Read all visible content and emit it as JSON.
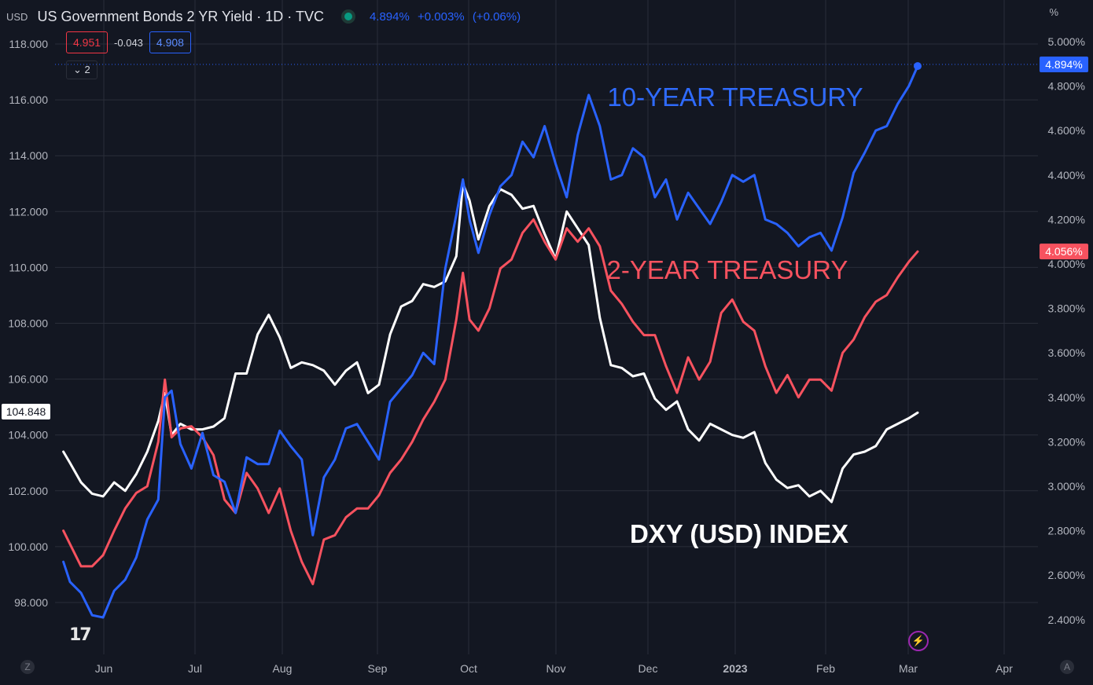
{
  "header": {
    "currency": "USD",
    "title": "US Government Bonds 2 YR Yield · 1D · TVC",
    "last": "4.894%",
    "change": "+0.003%",
    "change_pct": "(+0.06%)",
    "pct_unit": "%"
  },
  "ohlc": {
    "sell": "4.951",
    "spread": "-0.043",
    "buy": "4.908"
  },
  "collapse_label": "2",
  "logo_text": "17",
  "bolt_glyph": "⚡",
  "corner_left": "Z",
  "corner_right": "A",
  "colors": {
    "background": "#131722",
    "grid": "#2a2e39",
    "ten_year": "#2962ff",
    "two_year": "#f7525f",
    "dxy": "#ffffff"
  },
  "chart_data": {
    "type": "line",
    "x_labels": [
      "Jun",
      "Jul",
      "Aug",
      "Sep",
      "Oct",
      "Nov",
      "Dec",
      "2023",
      "Feb",
      "Mar",
      "Apr"
    ],
    "left_axis": {
      "ticks": [
        "118.000",
        "116.000",
        "114.000",
        "112.000",
        "110.000",
        "108.000",
        "106.000",
        "104.000",
        "102.000",
        "100.000",
        "98.000"
      ],
      "range": [
        95.1,
        119.6
      ],
      "badge": "104.848"
    },
    "right_axis": {
      "ticks": [
        "5.000%",
        "4.800%",
        "4.600%",
        "4.400%",
        "4.200%",
        "4.000%",
        "3.800%",
        "3.600%",
        "3.400%",
        "3.200%",
        "3.000%",
        "2.800%",
        "2.600%",
        "2.400%"
      ],
      "range": [
        2.38,
        5.12
      ],
      "badge_ten": "4.894%",
      "badge_two": "4.056%"
    },
    "annotations": {
      "ten_year": "10-YEAR TREASURY",
      "two_year": "2-YEAR TREASURY",
      "dxy": "DXY (USD) INDEX"
    },
    "series": [
      {
        "key": "ten",
        "axis": "right",
        "values": [
          [
            0.2,
            2.66
          ],
          [
            0.5,
            2.57
          ],
          [
            1.0,
            2.52
          ],
          [
            1.5,
            2.42
          ],
          [
            2.0,
            2.41
          ],
          [
            2.5,
            2.53
          ],
          [
            3.0,
            2.58
          ],
          [
            3.5,
            2.68
          ],
          [
            4.0,
            2.85
          ],
          [
            4.5,
            2.94
          ],
          [
            4.8,
            3.4
          ],
          [
            5.1,
            3.43
          ],
          [
            5.5,
            3.19
          ],
          [
            6.0,
            3.08
          ],
          [
            6.5,
            3.24
          ],
          [
            7.0,
            3.05
          ],
          [
            7.5,
            3.02
          ],
          [
            8.0,
            2.88
          ],
          [
            8.5,
            3.13
          ],
          [
            9.0,
            3.1
          ],
          [
            9.5,
            3.1
          ],
          [
            10.0,
            3.25
          ],
          [
            10.5,
            3.18
          ],
          [
            11.0,
            3.12
          ],
          [
            11.5,
            2.78
          ],
          [
            12.0,
            3.04
          ],
          [
            12.5,
            3.12
          ],
          [
            13.0,
            3.26
          ],
          [
            13.5,
            3.28
          ],
          [
            14.0,
            3.2
          ],
          [
            14.5,
            3.12
          ],
          [
            15.0,
            3.38
          ],
          [
            15.5,
            3.44
          ],
          [
            16.0,
            3.5
          ],
          [
            16.5,
            3.6
          ],
          [
            17.0,
            3.55
          ],
          [
            17.5,
            3.98
          ],
          [
            18.0,
            4.22
          ],
          [
            18.3,
            4.38
          ],
          [
            18.6,
            4.2
          ],
          [
            19.0,
            4.05
          ],
          [
            19.5,
            4.22
          ],
          [
            20.0,
            4.35
          ],
          [
            20.5,
            4.4
          ],
          [
            21.0,
            4.55
          ],
          [
            21.5,
            4.48
          ],
          [
            22.0,
            4.62
          ],
          [
            22.5,
            4.45
          ],
          [
            23.0,
            4.3
          ],
          [
            23.5,
            4.58
          ],
          [
            24.0,
            4.76
          ],
          [
            24.5,
            4.62
          ],
          [
            25.0,
            4.38
          ],
          [
            25.5,
            4.4
          ],
          [
            26.0,
            4.52
          ],
          [
            26.5,
            4.48
          ],
          [
            27.0,
            4.3
          ],
          [
            27.5,
            4.38
          ],
          [
            28.0,
            4.2
          ],
          [
            28.5,
            4.32
          ],
          [
            29.0,
            4.25
          ],
          [
            29.5,
            4.18
          ],
          [
            30.0,
            4.28
          ],
          [
            30.5,
            4.4
          ],
          [
            31.0,
            4.37
          ],
          [
            31.5,
            4.4
          ],
          [
            32.0,
            4.2
          ],
          [
            32.5,
            4.18
          ],
          [
            33.0,
            4.14
          ],
          [
            33.5,
            4.08
          ],
          [
            34.0,
            4.12
          ],
          [
            34.5,
            4.14
          ],
          [
            35.0,
            4.06
          ],
          [
            35.5,
            4.21
          ],
          [
            36.0,
            4.41
          ],
          [
            36.5,
            4.5
          ],
          [
            37.0,
            4.6
          ],
          [
            37.5,
            4.62
          ],
          [
            38.0,
            4.72
          ],
          [
            38.5,
            4.8
          ],
          [
            38.9,
            4.89
          ]
        ]
      },
      {
        "key": "two",
        "axis": "right",
        "values": [
          [
            0.2,
            2.8
          ],
          [
            0.5,
            2.74
          ],
          [
            1.0,
            2.64
          ],
          [
            1.5,
            2.64
          ],
          [
            2.0,
            2.69
          ],
          [
            2.5,
            2.8
          ],
          [
            3.0,
            2.9
          ],
          [
            3.5,
            2.97
          ],
          [
            4.0,
            3.0
          ],
          [
            4.5,
            3.2
          ],
          [
            4.8,
            3.48
          ],
          [
            5.1,
            3.22
          ],
          [
            5.5,
            3.26
          ],
          [
            6.0,
            3.27
          ],
          [
            6.5,
            3.22
          ],
          [
            7.0,
            3.14
          ],
          [
            7.5,
            2.94
          ],
          [
            8.0,
            2.88
          ],
          [
            8.5,
            3.06
          ],
          [
            9.0,
            2.99
          ],
          [
            9.5,
            2.88
          ],
          [
            10.0,
            2.99
          ],
          [
            10.5,
            2.8
          ],
          [
            11.0,
            2.66
          ],
          [
            11.5,
            2.56
          ],
          [
            12.0,
            2.76
          ],
          [
            12.5,
            2.78
          ],
          [
            13.0,
            2.86
          ],
          [
            13.5,
            2.9
          ],
          [
            14.0,
            2.9
          ],
          [
            14.5,
            2.96
          ],
          [
            15.0,
            3.06
          ],
          [
            15.5,
            3.12
          ],
          [
            16.0,
            3.2
          ],
          [
            16.5,
            3.3
          ],
          [
            17.0,
            3.38
          ],
          [
            17.5,
            3.48
          ],
          [
            18.0,
            3.75
          ],
          [
            18.3,
            3.96
          ],
          [
            18.6,
            3.75
          ],
          [
            19.0,
            3.7
          ],
          [
            19.5,
            3.8
          ],
          [
            20.0,
            3.98
          ],
          [
            20.5,
            4.02
          ],
          [
            21.0,
            4.14
          ],
          [
            21.5,
            4.2
          ],
          [
            22.0,
            4.1
          ],
          [
            22.5,
            4.02
          ],
          [
            23.0,
            4.16
          ],
          [
            23.5,
            4.1
          ],
          [
            24.0,
            4.16
          ],
          [
            24.5,
            4.08
          ],
          [
            25.0,
            3.88
          ],
          [
            25.5,
            3.82
          ],
          [
            26.0,
            3.74
          ],
          [
            26.5,
            3.68
          ],
          [
            27.0,
            3.68
          ],
          [
            27.5,
            3.54
          ],
          [
            28.0,
            3.42
          ],
          [
            28.5,
            3.58
          ],
          [
            29.0,
            3.48
          ],
          [
            29.5,
            3.56
          ],
          [
            30.0,
            3.78
          ],
          [
            30.5,
            3.84
          ],
          [
            31.0,
            3.74
          ],
          [
            31.5,
            3.7
          ],
          [
            32.0,
            3.54
          ],
          [
            32.5,
            3.42
          ],
          [
            33.0,
            3.5
          ],
          [
            33.5,
            3.4
          ],
          [
            34.0,
            3.48
          ],
          [
            34.5,
            3.48
          ],
          [
            35.0,
            3.43
          ],
          [
            35.5,
            3.6
          ],
          [
            36.0,
            3.66
          ],
          [
            36.5,
            3.76
          ],
          [
            37.0,
            3.83
          ],
          [
            37.5,
            3.86
          ],
          [
            38.0,
            3.94
          ],
          [
            38.5,
            4.01
          ],
          [
            38.9,
            4.056
          ]
        ]
      },
      {
        "key": "dxy",
        "axis": "left",
        "values": [
          [
            0.2,
            103.4
          ],
          [
            0.5,
            103.0
          ],
          [
            1.0,
            102.3
          ],
          [
            1.5,
            101.9
          ],
          [
            2.0,
            101.8
          ],
          [
            2.5,
            102.3
          ],
          [
            3.0,
            102.0
          ],
          [
            3.5,
            102.6
          ],
          [
            4.0,
            103.4
          ],
          [
            4.5,
            104.5
          ],
          [
            4.8,
            105.5
          ],
          [
            5.1,
            104.0
          ],
          [
            5.5,
            104.4
          ],
          [
            6.0,
            104.2
          ],
          [
            6.5,
            104.2
          ],
          [
            7.0,
            104.3
          ],
          [
            7.5,
            104.6
          ],
          [
            8.0,
            106.2
          ],
          [
            8.5,
            106.2
          ],
          [
            9.0,
            107.6
          ],
          [
            9.5,
            108.3
          ],
          [
            10.0,
            107.5
          ],
          [
            10.5,
            106.4
          ],
          [
            11.0,
            106.6
          ],
          [
            11.5,
            106.5
          ],
          [
            12.0,
            106.3
          ],
          [
            12.5,
            105.8
          ],
          [
            13.0,
            106.3
          ],
          [
            13.5,
            106.6
          ],
          [
            14.0,
            105.5
          ],
          [
            14.5,
            105.8
          ],
          [
            15.0,
            107.6
          ],
          [
            15.5,
            108.6
          ],
          [
            16.0,
            108.8
          ],
          [
            16.5,
            109.4
          ],
          [
            17.0,
            109.3
          ],
          [
            17.5,
            109.5
          ],
          [
            18.0,
            110.4
          ],
          [
            18.3,
            113.0
          ],
          [
            18.6,
            112.4
          ],
          [
            19.0,
            111.0
          ],
          [
            19.5,
            112.2
          ],
          [
            20.0,
            112.8
          ],
          [
            20.5,
            112.6
          ],
          [
            21.0,
            112.1
          ],
          [
            21.5,
            112.2
          ],
          [
            22.0,
            111.2
          ],
          [
            22.5,
            110.3
          ],
          [
            23.0,
            112.0
          ],
          [
            23.5,
            111.4
          ],
          [
            24.0,
            110.8
          ],
          [
            24.5,
            108.2
          ],
          [
            25.0,
            106.5
          ],
          [
            25.5,
            106.4
          ],
          [
            26.0,
            106.1
          ],
          [
            26.5,
            106.2
          ],
          [
            27.0,
            105.3
          ],
          [
            27.5,
            104.9
          ],
          [
            28.0,
            105.2
          ],
          [
            28.5,
            104.2
          ],
          [
            29.0,
            103.8
          ],
          [
            29.5,
            104.4
          ],
          [
            30.0,
            104.2
          ],
          [
            30.5,
            104.0
          ],
          [
            31.0,
            103.9
          ],
          [
            31.5,
            104.1
          ],
          [
            32.0,
            103.0
          ],
          [
            32.5,
            102.4
          ],
          [
            33.0,
            102.1
          ],
          [
            33.5,
            102.2
          ],
          [
            34.0,
            101.8
          ],
          [
            34.5,
            102.0
          ],
          [
            35.0,
            101.6
          ],
          [
            35.5,
            102.8
          ],
          [
            36.0,
            103.3
          ],
          [
            36.5,
            103.4
          ],
          [
            37.0,
            103.6
          ],
          [
            37.5,
            104.2
          ],
          [
            38.0,
            104.4
          ],
          [
            38.5,
            104.6
          ],
          [
            38.9,
            104.8
          ]
        ]
      }
    ]
  }
}
